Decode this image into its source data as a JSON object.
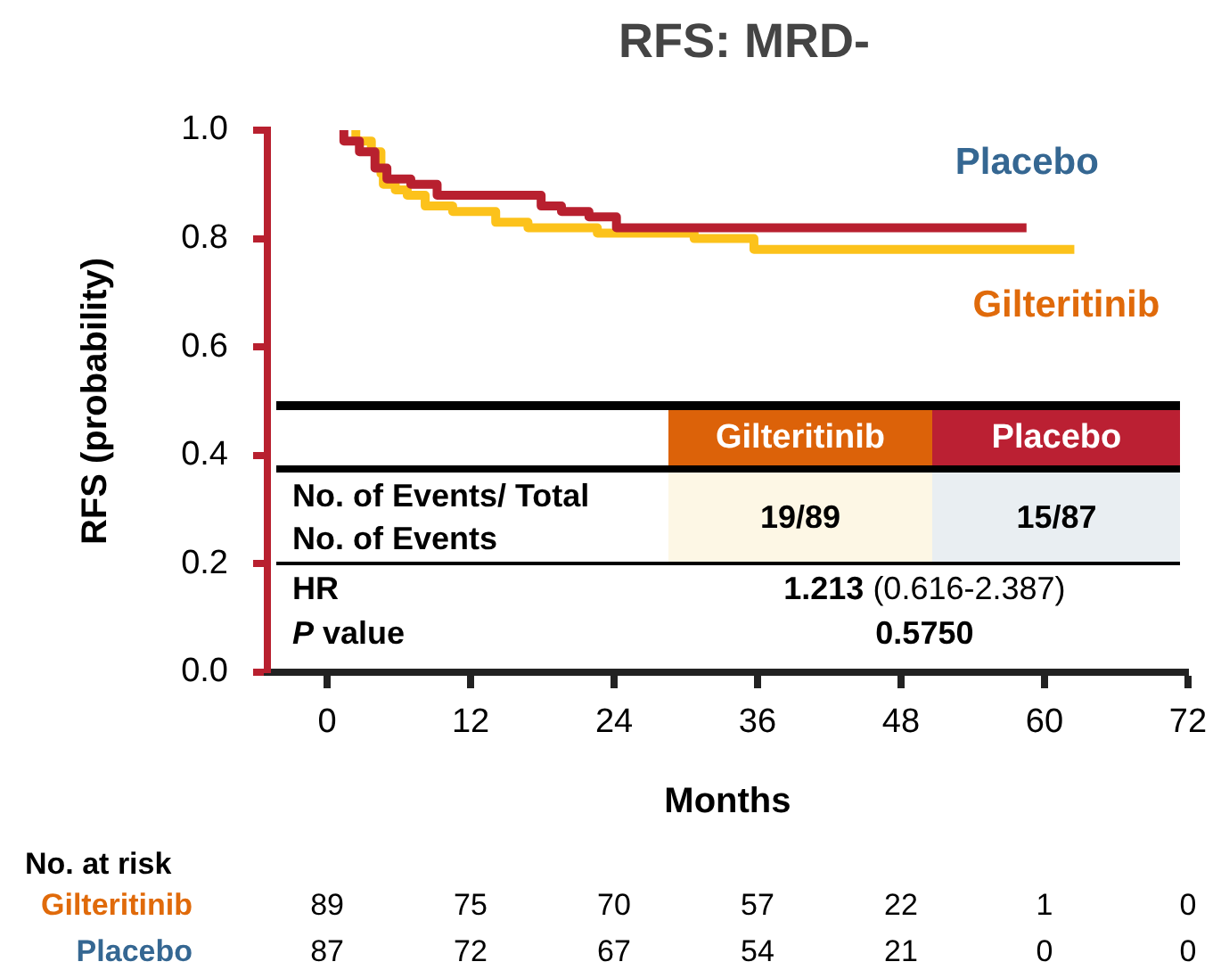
{
  "chart_data": {
    "type": "step",
    "title": "RFS: MRD-",
    "xlabel": "Months",
    "ylabel": "RFS (probability)",
    "series": [
      {
        "name": "Placebo",
        "color": "#b8202f",
        "x": [
          1.4,
          2.7,
          4.0,
          5.0,
          7.0,
          9.2,
          17.9,
          19.6,
          21.9,
          24.2,
          34.3,
          58.5
        ],
        "values": [
          1.0,
          0.98,
          0.96,
          0.93,
          0.91,
          0.9,
          0.88,
          0.86,
          0.85,
          0.84,
          0.82,
          0.82
        ]
      },
      {
        "name": "Gilteritinib",
        "color": "#fcc21b",
        "x": [
          2.4,
          3.7,
          4.5,
          4.7,
          5.7,
          6.7,
          8.2,
          10.5,
          14.1,
          16.8,
          22.6,
          30.7,
          35.7,
          40.8,
          62.5
        ],
        "values": [
          1.0,
          0.98,
          0.96,
          0.92,
          0.9,
          0.89,
          0.88,
          0.86,
          0.85,
          0.83,
          0.82,
          0.81,
          0.8,
          0.78,
          0.78
        ]
      }
    ],
    "xlim": [
      -5,
      72
    ],
    "xticks": [
      0,
      12,
      24,
      36,
      48,
      60,
      72
    ],
    "ylim": [
      0,
      1
    ],
    "yticks": [
      {
        "value": 0,
        "label": "0.0"
      },
      {
        "value": 0.2,
        "label": "0.2"
      },
      {
        "value": 0.4,
        "label": "0.4"
      },
      {
        "value": 0.6,
        "label": "0.6"
      },
      {
        "value": 0.8,
        "label": "0.8"
      },
      {
        "value": 1,
        "label": "1.0"
      }
    ],
    "grid": false,
    "legend": false,
    "marker": "none",
    "line_style": "solid",
    "annotations": [
      "Gilteritinib",
      "Placebo",
      "No. of Events/ Total No. of Events",
      "19/89",
      "15/87",
      "HR",
      "1.213 (0.616-2.387)",
      "P value",
      "0.5750",
      "No. at risk",
      "Gilteritinib",
      "Placebo",
      "89",
      "75",
      "70",
      "57",
      "22",
      "1",
      "0",
      "87",
      "72",
      "67",
      "54",
      "21",
      "0",
      "0"
    ]
  }
}
